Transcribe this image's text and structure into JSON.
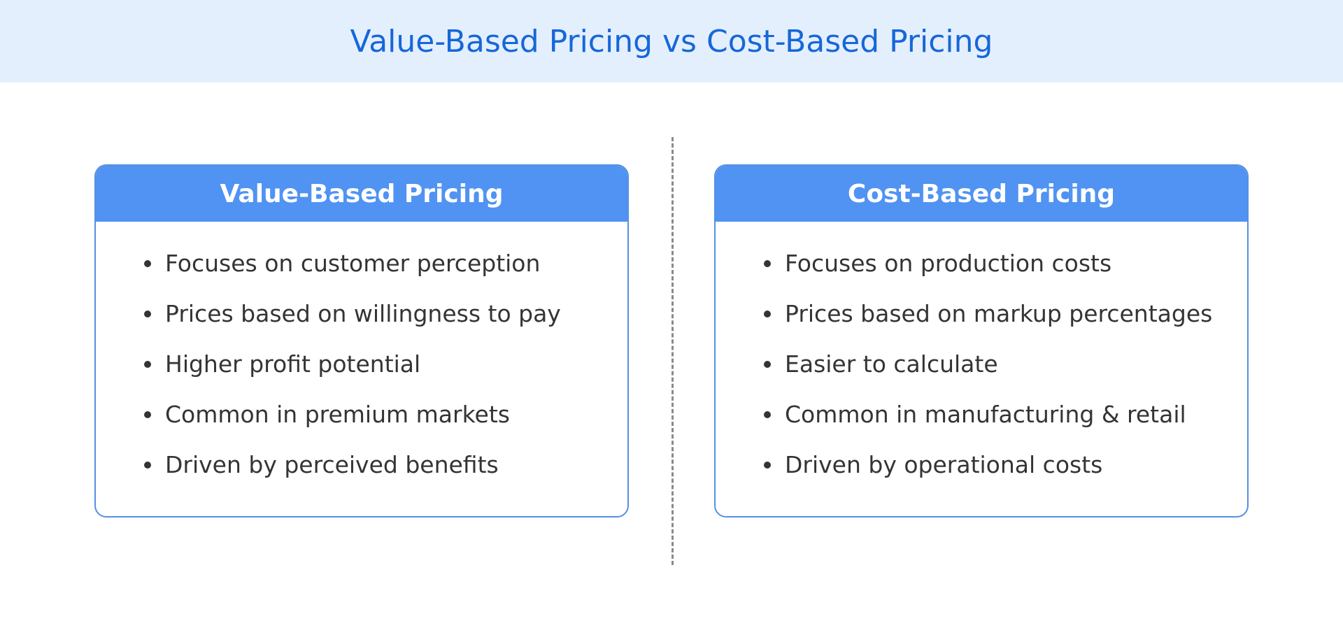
{
  "header": {
    "title": "Value-Based Pricing vs Cost-Based Pricing"
  },
  "cards": [
    {
      "title": "Value-Based Pricing",
      "items": [
        "Focuses on customer perception",
        "Prices based on willingness to pay",
        "Higher profit potential",
        "Common in premium markets",
        "Driven by perceived benefits"
      ]
    },
    {
      "title": "Cost-Based Pricing",
      "items": [
        "Focuses on production costs",
        "Prices based on markup percentages",
        "Easier to calculate",
        "Common in manufacturing & retail",
        "Driven by operational costs"
      ]
    }
  ]
}
